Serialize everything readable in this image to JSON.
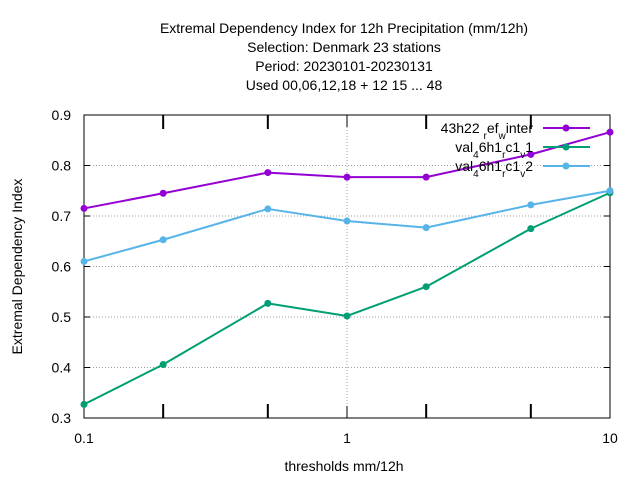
{
  "chart_data": {
    "type": "line",
    "title_lines": [
      "Extremal Dependency Index  for 12h Precipitation (mm/12h)",
      "Selection: Denmark     23 stations",
      "Period: 20230101-20230131",
      "Used  00,06,12,18  + 12 15 ... 48"
    ],
    "xlabel": "thresholds mm/12h",
    "ylabel": "Extremal Dependency Index",
    "x_scale": "log",
    "xlim": [
      0.1,
      10
    ],
    "ylim": [
      0.3,
      0.9
    ],
    "x_ticks": [
      0.1,
      1,
      10
    ],
    "x_tick_labels": [
      "0.1",
      "1",
      "10"
    ],
    "x_minor_ticks": [
      0.2,
      0.5,
      2,
      5
    ],
    "y_ticks": [
      0.3,
      0.4,
      0.5,
      0.6,
      0.7,
      0.8,
      0.9
    ],
    "y_tick_labels": [
      "0.3",
      "0.4",
      "0.5",
      "0.6",
      "0.7",
      "0.8",
      "0.9"
    ],
    "grid": true,
    "legend_position": "top-right",
    "x": [
      0.1,
      0.2,
      0.5,
      1,
      2,
      5,
      10
    ],
    "series": [
      {
        "name": "43h22_ref_winter",
        "legend_parts": [
          [
            "43h22 ",
            "n"
          ],
          [
            "r",
            "sub"
          ],
          [
            "ef",
            "n"
          ],
          [
            "w",
            "sub"
          ],
          [
            "inter",
            "n"
          ]
        ],
        "color": "#9400d3",
        "values": [
          0.715,
          0.745,
          0.786,
          0.777,
          0.777,
          0.822,
          0.866
        ]
      },
      {
        "name": "val_46h1_rc1_v1",
        "legend_parts": [
          [
            "val",
            "n"
          ],
          [
            "4",
            "sub"
          ],
          [
            "6h1",
            "n"
          ],
          [
            "r",
            "sub"
          ],
          [
            "c1",
            "n"
          ],
          [
            "v",
            "sub"
          ],
          [
            "1",
            "n"
          ]
        ],
        "color": "#009e73",
        "values": [
          0.327,
          0.406,
          0.527,
          0.502,
          0.56,
          0.675,
          0.746
        ]
      },
      {
        "name": "val_46h1_rc1_v2",
        "legend_parts": [
          [
            "val",
            "n"
          ],
          [
            "4",
            "sub"
          ],
          [
            "6h1",
            "n"
          ],
          [
            "r",
            "sub"
          ],
          [
            "c1",
            "n"
          ],
          [
            "v",
            "sub"
          ],
          [
            "2",
            "n"
          ]
        ],
        "color": "#56b4e9",
        "values": [
          0.61,
          0.653,
          0.714,
          0.69,
          0.677,
          0.722,
          0.75
        ]
      }
    ]
  }
}
